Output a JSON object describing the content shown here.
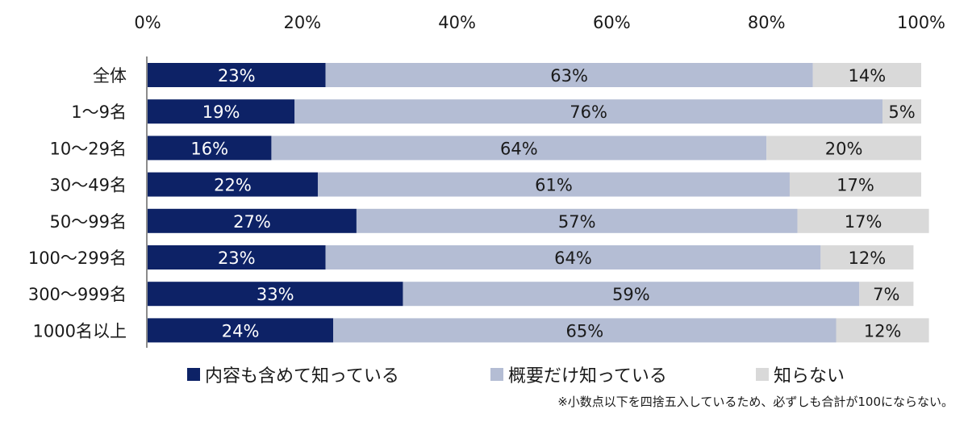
{
  "chart_data": {
    "type": "bar",
    "orientation": "horizontal",
    "stacked": true,
    "categories": [
      "全体",
      "1～9名",
      "10～29名",
      "30～49名",
      "50～99名",
      "100～299名",
      "300～999名",
      "1000名以上"
    ],
    "series": [
      {
        "name": "内容も含めて知っている",
        "values": [
          23,
          19,
          16,
          22,
          27,
          23,
          33,
          24
        ],
        "labels": [
          "23%",
          "19%",
          "16%",
          "22%",
          "27%",
          "23%",
          "33%",
          "24%"
        ],
        "color": "#0d2266"
      },
      {
        "name": "概要だけ知っている",
        "values": [
          63,
          76,
          64,
          61,
          57,
          64,
          59,
          65
        ],
        "labels": [
          "63%",
          "76%",
          "64%",
          "61%",
          "57%",
          "64%",
          "59%",
          "65%"
        ],
        "color": "#b4bdd4"
      },
      {
        "name": "知らない",
        "values": [
          14,
          5,
          20,
          17,
          17,
          12,
          7,
          12
        ],
        "labels": [
          "14%",
          "5%",
          "20%",
          "17%",
          "17%",
          "12%",
          "7%",
          "12%"
        ],
        "color": "#d9d9d9"
      }
    ],
    "xlim": [
      0,
      100
    ],
    "xticks": [
      "0%",
      "20%",
      "40%",
      "60%",
      "80%",
      "100%"
    ],
    "xaxis_position": "top",
    "grid": false,
    "legend_position": "bottom",
    "note": "※小数点以下を四捨五入しているため、必ずしも合計が100にならない。"
  }
}
